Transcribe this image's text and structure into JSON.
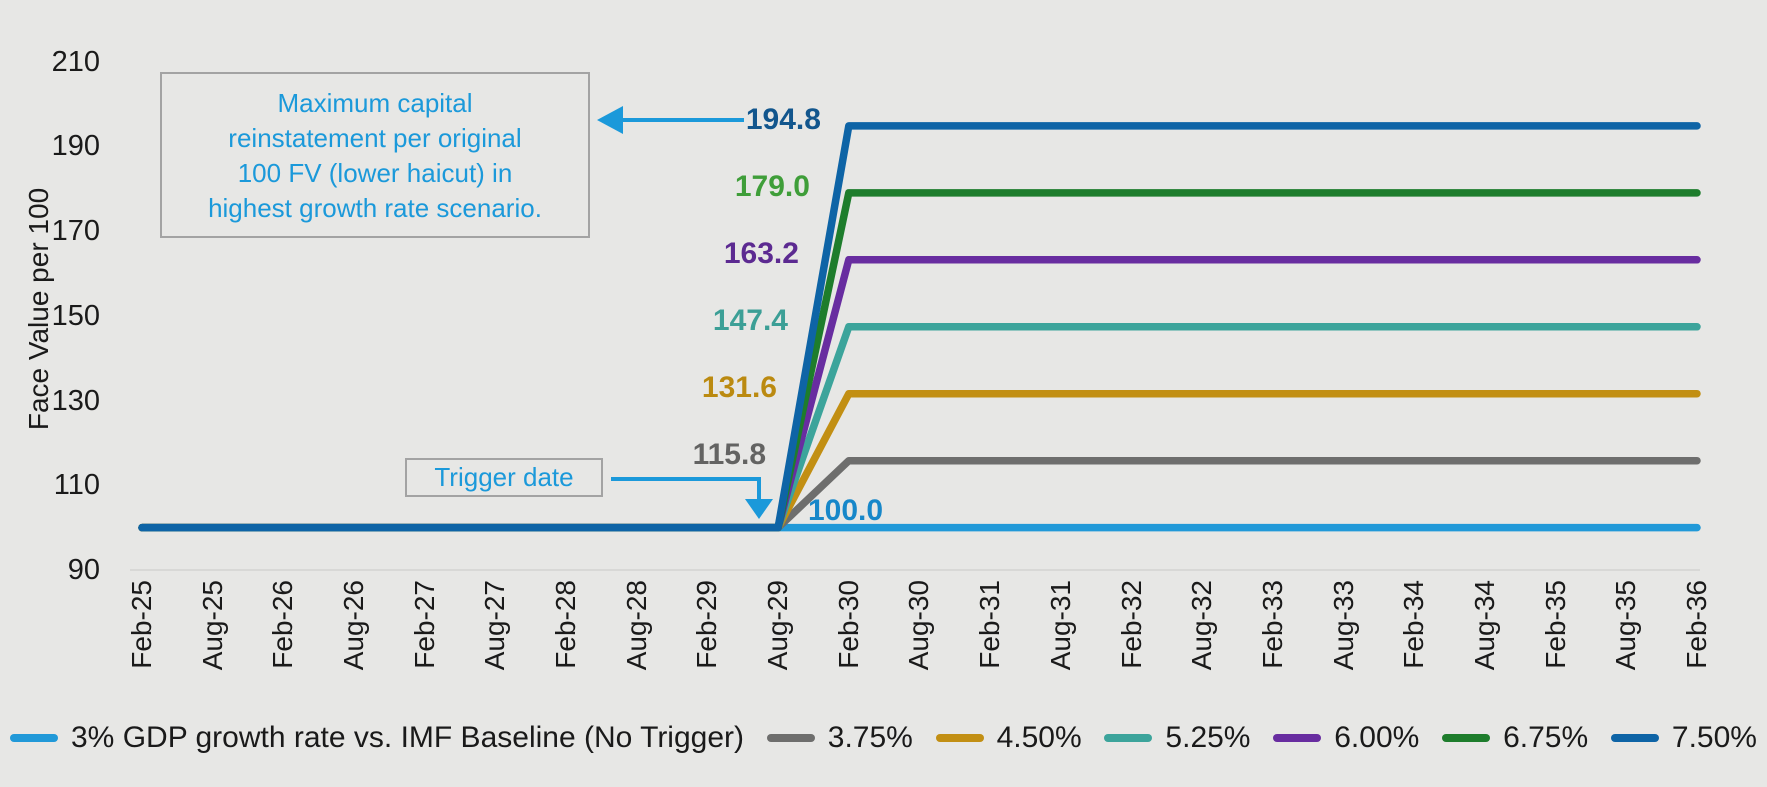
{
  "figure": {
    "background": "#e7e7e5",
    "annotation_blue": "#1b99da",
    "axis_text_color": "#1a1a1a",
    "box_border_color": "#a3a3a3",
    "baseline_grid_color": "#d8d8d6"
  },
  "chart_data": {
    "type": "line",
    "title": "",
    "xlabel": "",
    "ylabel": "Face Value per 100",
    "ylim": [
      90,
      210
    ],
    "y_ticks": [
      90,
      110,
      130,
      150,
      170,
      190,
      210
    ],
    "grid": "baseline-only",
    "legend_position": "bottom",
    "x_categories": [
      "Feb-25",
      "Aug-25",
      "Feb-26",
      "Aug-26",
      "Feb-27",
      "Aug-27",
      "Feb-28",
      "Aug-28",
      "Feb-29",
      "Aug-29",
      "Feb-30",
      "Aug-30",
      "Feb-31",
      "Aug-31",
      "Feb-32",
      "Aug-32",
      "Feb-33",
      "Aug-33",
      "Feb-34",
      "Aug-34",
      "Feb-35",
      "Aug-35",
      "Feb-36"
    ],
    "trigger_index": 9,
    "trigger_x": "Aug-29",
    "annotations": {
      "max_capital": {
        "line1": "Maximum capital",
        "line2": "reinstatement per original",
        "line3": "100 FV  (lower haicut) in",
        "line4": "highest growth rate scenario."
      },
      "trigger_label": "Trigger date"
    },
    "series": [
      {
        "name": "3% GDP growth rate vs. IMF Baseline (No Trigger)",
        "color": "#2199d8",
        "label": "100.0",
        "label_color": "#1787c9",
        "plateau": 100.0,
        "values": [
          100,
          100,
          100,
          100,
          100,
          100,
          100,
          100,
          100,
          100,
          100,
          100,
          100,
          100,
          100,
          100,
          100,
          100,
          100,
          100,
          100,
          100,
          100
        ]
      },
      {
        "name": "3.75%",
        "color": "#6e6e6d",
        "label": "115.8",
        "label_color": "#636362",
        "plateau": 115.8,
        "values": [
          100,
          100,
          100,
          100,
          100,
          100,
          100,
          100,
          100,
          100,
          115.8,
          115.8,
          115.8,
          115.8,
          115.8,
          115.8,
          115.8,
          115.8,
          115.8,
          115.8,
          115.8,
          115.8,
          115.8
        ]
      },
      {
        "name": "4.50%",
        "color": "#c28f13",
        "label": "131.6",
        "label_color": "#bb8a10",
        "plateau": 131.6,
        "values": [
          100,
          100,
          100,
          100,
          100,
          100,
          100,
          100,
          100,
          100,
          131.6,
          131.6,
          131.6,
          131.6,
          131.6,
          131.6,
          131.6,
          131.6,
          131.6,
          131.6,
          131.6,
          131.6,
          131.6
        ]
      },
      {
        "name": "5.25%",
        "color": "#3ca49b",
        "label": "147.4",
        "label_color": "#3c9f96",
        "plateau": 147.4,
        "values": [
          100,
          100,
          100,
          100,
          100,
          100,
          100,
          100,
          100,
          100,
          147.4,
          147.4,
          147.4,
          147.4,
          147.4,
          147.4,
          147.4,
          147.4,
          147.4,
          147.4,
          147.4,
          147.4,
          147.4
        ]
      },
      {
        "name": "6.00%",
        "color": "#682da0",
        "label": "163.2",
        "label_color": "#5c2a91",
        "plateau": 163.2,
        "values": [
          100,
          100,
          100,
          100,
          100,
          100,
          100,
          100,
          100,
          100,
          163.2,
          163.2,
          163.2,
          163.2,
          163.2,
          163.2,
          163.2,
          163.2,
          163.2,
          163.2,
          163.2,
          163.2,
          163.2
        ]
      },
      {
        "name": "6.75%",
        "color": "#1e7d2c",
        "label": "179.0",
        "label_color": "#3f9e39",
        "plateau": 179.0,
        "values": [
          100,
          100,
          100,
          100,
          100,
          100,
          100,
          100,
          100,
          100,
          179,
          179,
          179,
          179,
          179,
          179,
          179,
          179,
          179,
          179,
          179,
          179,
          179
        ]
      },
      {
        "name": "7.50%",
        "color": "#0e64a6",
        "label": "194.8",
        "label_color": "#12568d",
        "plateau": 194.8,
        "values": [
          100,
          100,
          100,
          100,
          100,
          100,
          100,
          100,
          100,
          100,
          194.8,
          194.8,
          194.8,
          194.8,
          194.8,
          194.8,
          194.8,
          194.8,
          194.8,
          194.8,
          194.8,
          194.8,
          194.8
        ]
      }
    ]
  }
}
